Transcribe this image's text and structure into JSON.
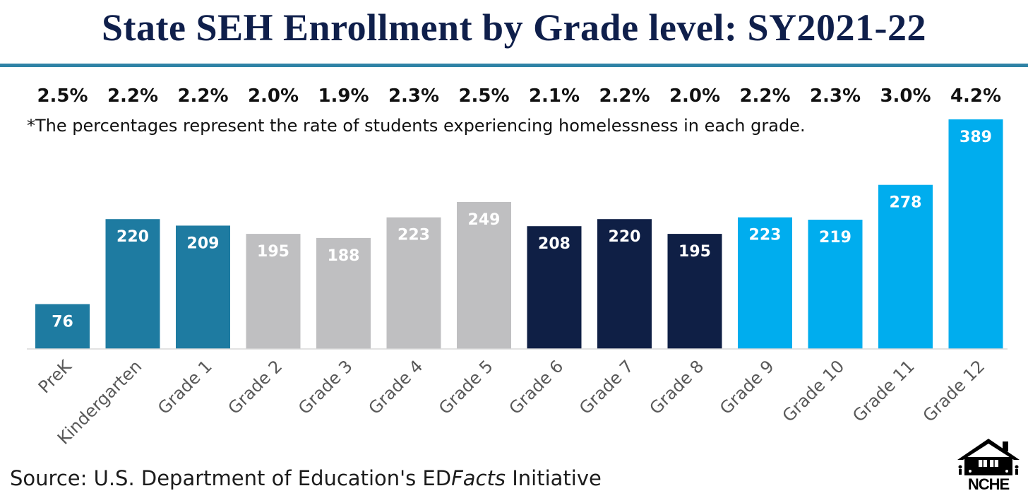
{
  "title": "State SEH Enrollment by Grade level: SY2021-22",
  "footnote": "*The percentages represent the rate of students experiencing homelessness in each grade.",
  "source": {
    "prefix": "Source: U.S. Department of Education's ED",
    "italic": "Facts",
    "suffix": " Initiative"
  },
  "logo": {
    "text": "NCHE",
    "icon": "house-family-icon"
  },
  "colors": {
    "title": "#0f1f4b",
    "rule": "#2f83a6",
    "teal": "#1e7ba1",
    "gray": "#bfbfc1",
    "navy": "#0f1f45",
    "sky": "#00adee"
  },
  "chart_data": {
    "type": "bar",
    "title": "State SEH Enrollment by Grade level: SY2021-22",
    "xlabel": "",
    "ylabel": "",
    "ylim": [
      0,
      389
    ],
    "grid": false,
    "categories": [
      "PreK",
      "Kindergarten",
      "Grade 1",
      "Grade 2",
      "Grade 3",
      "Grade 4",
      "Grade 5",
      "Grade 6",
      "Grade 7",
      "Grade 8",
      "Grade 9",
      "Grade 10",
      "Grade 11",
      "Grade 12"
    ],
    "values": [
      76,
      220,
      209,
      195,
      188,
      223,
      249,
      208,
      220,
      195,
      223,
      219,
      278,
      389
    ],
    "value_labels": [
      "76",
      "220",
      "209",
      "195",
      "188",
      "223",
      "249",
      "208",
      "220",
      "195",
      "223",
      "219",
      "278",
      "389"
    ],
    "rates": [
      "2.5%",
      "2.2%",
      "2.2%",
      "2.0%",
      "1.9%",
      "2.3%",
      "2.5%",
      "2.1%",
      "2.2%",
      "2.0%",
      "2.2%",
      "2.3%",
      "3.0%",
      "4.2%"
    ],
    "bar_colors": [
      "#1e7ba1",
      "#1e7ba1",
      "#1e7ba1",
      "#bfbfc1",
      "#bfbfc1",
      "#bfbfc1",
      "#bfbfc1",
      "#0f1f45",
      "#0f1f45",
      "#0f1f45",
      "#00adee",
      "#00adee",
      "#00adee",
      "#00adee"
    ]
  }
}
